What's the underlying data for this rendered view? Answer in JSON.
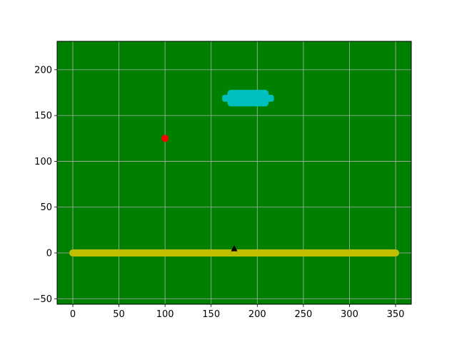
{
  "chart_data": {
    "type": "scatter",
    "title": "",
    "xlabel": "",
    "ylabel": "",
    "xlim": [
      -17,
      367
    ],
    "ylim": [
      -56,
      231
    ],
    "grid": true,
    "background_color": "#008000",
    "x_ticks": [
      0,
      50,
      100,
      150,
      200,
      250,
      300,
      350
    ],
    "y_ticks": [
      -50,
      0,
      50,
      100,
      150,
      200
    ],
    "x_tick_labels": [
      "0",
      "50",
      "100",
      "150",
      "200",
      "250",
      "300",
      "350"
    ],
    "y_tick_labels": [
      "−50",
      "0",
      "50",
      "100",
      "150",
      "200"
    ],
    "objects": [
      {
        "name": "ground",
        "shape": "bar",
        "color": "#bfbf00",
        "x": [
          0,
          350
        ],
        "y": 0
      },
      {
        "name": "ball",
        "shape": "circle",
        "color": "#ff0000",
        "x": 100,
        "y": 125
      },
      {
        "name": "player",
        "shape": "triangle",
        "color": "#000000",
        "x": 175,
        "y": 5
      },
      {
        "name": "cloud",
        "shape": "rounded-block",
        "color": "#00bfbf",
        "x": [
          162,
          218
        ],
        "y": [
          160,
          178
        ]
      }
    ]
  }
}
